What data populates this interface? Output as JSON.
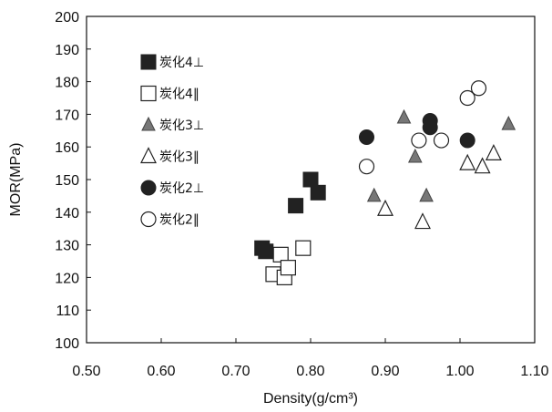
{
  "chart_data": {
    "type": "scatter",
    "title": "",
    "xlabel": "Density(g/cm³)",
    "ylabel": "MOR(MPa)",
    "xlim": [
      0.5,
      1.1
    ],
    "ylim": [
      100,
      200
    ],
    "xticks": [
      "0.50",
      "0.60",
      "0.70",
      "0.80",
      "0.90",
      "1.00",
      "1.10"
    ],
    "yticks": [
      "100",
      "110",
      "120",
      "130",
      "140",
      "150",
      "160",
      "170",
      "180",
      "190",
      "200"
    ],
    "grid": false,
    "legend_position": "top-left",
    "colors": {
      "filled": "#222222",
      "triangle_fill": "#777777",
      "open": "#ffffff",
      "stroke": "#222222"
    },
    "series": [
      {
        "name": "炭化4⊥",
        "marker": "square-filled",
        "points": [
          [
            0.735,
            129
          ],
          [
            0.74,
            128
          ],
          [
            0.78,
            142
          ],
          [
            0.8,
            150
          ],
          [
            0.81,
            146
          ]
        ]
      },
      {
        "name": "炭化4‖",
        "marker": "square-open",
        "points": [
          [
            0.75,
            121
          ],
          [
            0.76,
            127
          ],
          [
            0.765,
            120
          ],
          [
            0.77,
            123
          ],
          [
            0.79,
            129
          ]
        ]
      },
      {
        "name": "炭化3⊥",
        "marker": "triangle-filled",
        "points": [
          [
            0.885,
            145
          ],
          [
            0.925,
            169
          ],
          [
            0.94,
            157
          ],
          [
            0.955,
            145
          ],
          [
            1.065,
            167
          ]
        ]
      },
      {
        "name": "炭化3‖",
        "marker": "triangle-open",
        "points": [
          [
            0.9,
            141
          ],
          [
            0.95,
            137
          ],
          [
            1.01,
            155
          ],
          [
            1.03,
            154
          ],
          [
            1.045,
            158
          ]
        ]
      },
      {
        "name": "炭化2⊥",
        "marker": "circle-filled",
        "points": [
          [
            0.875,
            163
          ],
          [
            0.96,
            168
          ],
          [
            0.96,
            166
          ],
          [
            1.01,
            162
          ]
        ]
      },
      {
        "name": "炭化2‖",
        "marker": "circle-open",
        "points": [
          [
            0.875,
            154
          ],
          [
            0.945,
            162
          ],
          [
            0.975,
            162
          ],
          [
            1.01,
            175
          ],
          [
            1.025,
            178
          ]
        ]
      }
    ]
  }
}
